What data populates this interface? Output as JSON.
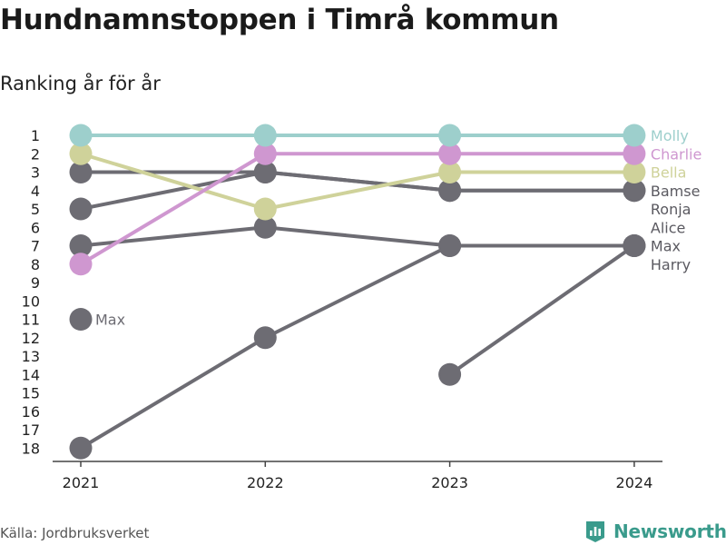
{
  "title": "Hundnamnstoppen i Timrå kommun",
  "subtitle": "Ranking år för år",
  "source": "Källa: Jordbruksverket",
  "brand": "Newsworthy",
  "brand_color": "#3a9b8c",
  "chart_data": {
    "type": "line",
    "x": [
      "2021",
      "2022",
      "2023",
      "2024"
    ],
    "y_ticks": [
      "1",
      "2",
      "3",
      "4",
      "5",
      "6",
      "7",
      "8",
      "9",
      "10",
      "11",
      "12",
      "13",
      "14",
      "15",
      "16",
      "17",
      "18"
    ],
    "ylim": [
      1,
      18
    ],
    "y_inverted": true,
    "grid": false,
    "series": [
      {
        "name": "Max",
        "values": [
          18,
          12,
          7,
          7
        ],
        "color": "#6d6c73",
        "label_end": false
      },
      {
        "name": "",
        "values": [
          null,
          null,
          14,
          7
        ],
        "color": "#6d6c73",
        "label_end": false
      },
      {
        "name": "Max",
        "values": [
          11,
          null,
          null,
          null
        ],
        "color": "#6d6c73",
        "label_end": false
      },
      {
        "name": "",
        "values": [
          7,
          6,
          7,
          7
        ],
        "color": "#6d6c73",
        "label_end": false
      },
      {
        "name": "",
        "values": [
          5,
          3,
          4,
          4
        ],
        "color": "#6d6c73",
        "label_end": false
      },
      {
        "name": "",
        "values": [
          3,
          3,
          4,
          4
        ],
        "color": "#6d6c73",
        "label_end": false
      },
      {
        "name": "Bella",
        "values": [
          2,
          5,
          3,
          3
        ],
        "color": "#cfd29a",
        "label_end": true
      },
      {
        "name": "Charlie",
        "values": [
          8,
          2,
          2,
          2
        ],
        "color": "#cf97d0",
        "label_end": true
      },
      {
        "name": "Molly",
        "values": [
          1,
          1,
          1,
          1
        ],
        "color": "#9dcfcc",
        "label_end": true
      }
    ],
    "start_labels": [
      {
        "text": "Max",
        "x": "2021",
        "y": 11,
        "color": "#6d6c73"
      }
    ],
    "end_labels": [
      {
        "text": "Molly",
        "rank": 1,
        "color": "#9dcfcc"
      },
      {
        "text": "Charlie",
        "rank": 2,
        "color": "#cf97d0"
      },
      {
        "text": "Bella",
        "rank": 3,
        "color": "#cfd29a"
      },
      {
        "text": "Bamse",
        "rank": 4,
        "color": "#5a5960"
      },
      {
        "text": "Ronja",
        "rank": 5,
        "color": "#5a5960"
      },
      {
        "text": "Alice",
        "rank": 6,
        "color": "#5a5960"
      },
      {
        "text": "Max",
        "rank": 7,
        "color": "#5a5960"
      },
      {
        "text": "Harry",
        "rank": 8,
        "color": "#5a5960"
      }
    ],
    "axis_color": "#444444"
  }
}
